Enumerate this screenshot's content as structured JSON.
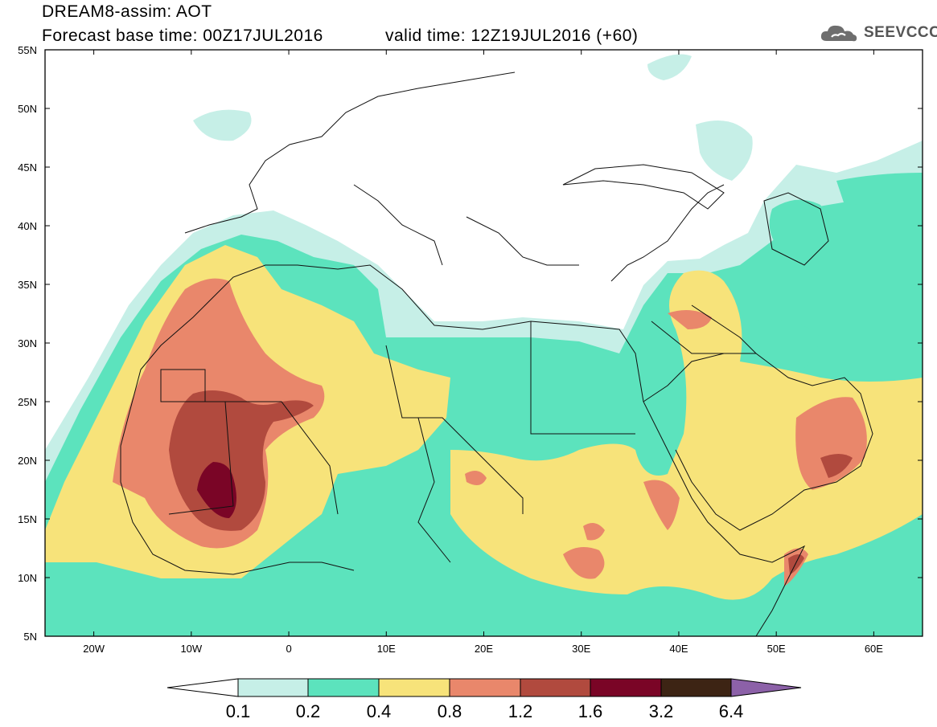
{
  "header": {
    "title": "DREAM8-assim: AOT",
    "base_time": "Forecast base time: 00Z17JUL2016",
    "valid_time": "valid time: 12Z19JUL2016 (+60)"
  },
  "logo": {
    "text": "SEEVCCC",
    "icon": "cloud-icon"
  },
  "map": {
    "lat_labels": [
      "55N",
      "50N",
      "45N",
      "40N",
      "35N",
      "30N",
      "25N",
      "20N",
      "15N",
      "10N",
      "5N"
    ],
    "lon_labels": [
      "20W",
      "10W",
      "0",
      "10E",
      "20E",
      "30E",
      "40E",
      "50E",
      "60E"
    ],
    "lat_range": [
      5,
      55
    ],
    "lon_range": [
      -25,
      65
    ]
  },
  "colorbar": {
    "labels": [
      "0.1",
      "0.2",
      "0.4",
      "0.8",
      "1.2",
      "1.6",
      "3.2",
      "6.4"
    ],
    "colors": [
      "#ffffff",
      "#c6efe7",
      "#5ce3bd",
      "#f7e37a",
      "#e9876b",
      "#b14a3e",
      "#7a0526",
      "#3d2414",
      "#8c61a8"
    ]
  }
}
